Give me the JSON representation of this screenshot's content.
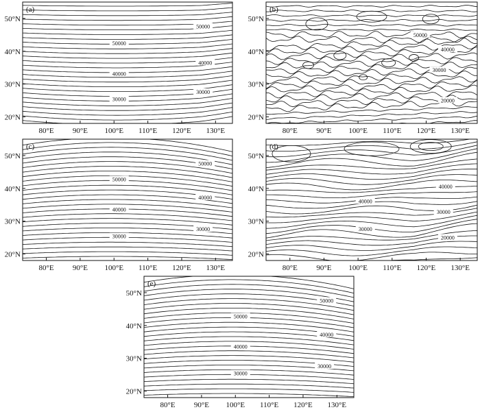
{
  "figure": {
    "panels": [
      {
        "id": "a",
        "label": "(a)",
        "x_ticks": [
          "80°E",
          "90°E",
          "100°E",
          "110°E",
          "120°E",
          "130°E"
        ],
        "y_ticks": [
          "20°N",
          "30°N",
          "40°N",
          "50°N"
        ],
        "x_range": [
          73,
          135
        ],
        "y_range": [
          18,
          55
        ],
        "contour_style": "smooth",
        "contour_labels": [
          "50000",
          "50000",
          "40000",
          "40000",
          "30000",
          "30000"
        ]
      },
      {
        "id": "b",
        "label": "(b)",
        "x_ticks": [
          "80°E",
          "90°E",
          "100°E",
          "110°E",
          "120°E",
          "130°E"
        ],
        "y_ticks": [
          "20°N",
          "30°N",
          "40°N",
          "50°N"
        ],
        "x_range": [
          73,
          135
        ],
        "y_range": [
          18,
          55
        ],
        "contour_style": "noisy",
        "contour_labels": [
          "50000",
          "40000",
          "30000",
          "20000"
        ]
      },
      {
        "id": "c",
        "label": "(c)",
        "x_ticks": [
          "80°E",
          "90°E",
          "100°E",
          "110°E",
          "120°E",
          "130°E"
        ],
        "y_ticks": [
          "20°N",
          "30°N",
          "40°N",
          "50°N"
        ],
        "x_range": [
          73,
          135
        ],
        "y_range": [
          18,
          55
        ],
        "contour_style": "curved",
        "contour_labels": [
          "50000",
          "50000",
          "40000",
          "40000",
          "30000",
          "30000"
        ]
      },
      {
        "id": "d",
        "label": "(d)",
        "x_ticks": [
          "80°E",
          "90°E",
          "100°E",
          "110°E",
          "120°E",
          "130°E"
        ],
        "y_ticks": [
          "20°N",
          "30°N",
          "40°N",
          "50°N"
        ],
        "x_range": [
          73,
          135
        ],
        "y_range": [
          18,
          55
        ],
        "contour_style": "wavy",
        "contour_labels": [
          "40000",
          "40000",
          "30000",
          "30000",
          "20000"
        ]
      },
      {
        "id": "e",
        "label": "(e)",
        "x_ticks": [
          "80°E",
          "90°E",
          "100°E",
          "110°E",
          "120°E",
          "130°E"
        ],
        "y_ticks": [
          "20°N",
          "30°N",
          "40°N",
          "50°N"
        ],
        "x_range": [
          73,
          135
        ],
        "y_range": [
          18,
          55
        ],
        "contour_style": "curved",
        "contour_labels": [
          "50000",
          "50000",
          "40000",
          "40000",
          "30000",
          "30000"
        ]
      }
    ]
  }
}
